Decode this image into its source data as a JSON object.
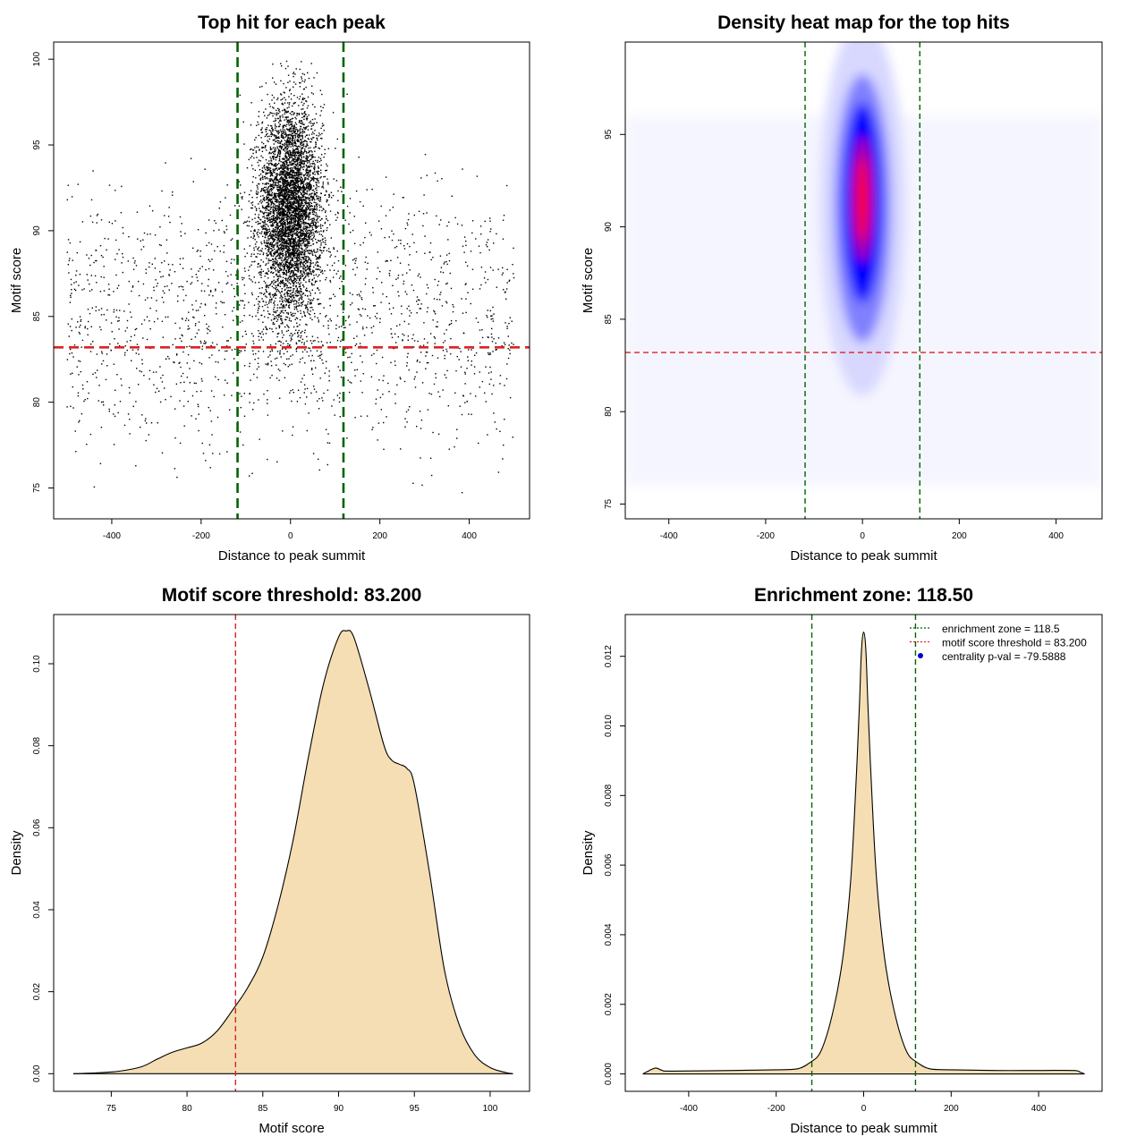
{
  "chart_data": [
    {
      "type": "scatter",
      "title": "Top hit for each peak",
      "xlabel": "Distance to peak summit",
      "ylabel": "Motif score",
      "xlim": [
        -530,
        535
      ],
      "ylim": [
        73.2,
        101
      ],
      "xticks": [
        "-400",
        "-200",
        "0",
        "200",
        "400"
      ],
      "yticks": [
        "75",
        "80",
        "85",
        "90",
        "95",
        "100"
      ],
      "point_color": "#000000",
      "enrichment_zone": [
        -118.5,
        118.5
      ],
      "zone_color": "#006400",
      "threshold": 83.2,
      "threshold_color": "#dd2222",
      "points_description": "dense vertical cluster of top hits centered near 0 (sd about 35) with motif scores mostly 85 to 99; sparse uniform background from -500 to 500 with scores 74 to 96"
    },
    {
      "type": "heatmap",
      "title": "Density heat map for the top hits",
      "xlabel": "Distance to peak summit",
      "ylabel": "Motif score",
      "xlim": [
        -490,
        495
      ],
      "ylim": [
        74.2,
        100
      ],
      "xticks": [
        "-400",
        "-200",
        "0",
        "200",
        "400"
      ],
      "yticks": [
        "75",
        "80",
        "85",
        "90",
        "95"
      ],
      "colormap": [
        "#ffffff",
        "#0000ff",
        "#ff0000"
      ],
      "density_peak": {
        "x": 0,
        "y": 91.5
      },
      "enrichment_zone": [
        -118.5,
        118.5
      ],
      "zone_color": "#006400",
      "threshold": 83.2,
      "threshold_color": "#dd2222"
    },
    {
      "type": "area",
      "title": "Motif score threshold: 83.200",
      "xlabel": "Motif score",
      "ylabel": "Density",
      "xlim": [
        71.2,
        102.6
      ],
      "ylim": [
        -0.0043,
        0.112
      ],
      "xticks": [
        "75",
        "80",
        "85",
        "90",
        "95",
        "100"
      ],
      "yticks": [
        "0.00",
        "0.02",
        "0.04",
        "0.06",
        "0.08",
        "0.10"
      ],
      "fill_color": "#f5deb3",
      "x": [
        72.5,
        74,
        75.5,
        77,
        78,
        79,
        80,
        81,
        82,
        83,
        84,
        85,
        86,
        87,
        88,
        89,
        90,
        90.5,
        91,
        92,
        93,
        93.5,
        94,
        94.5,
        95,
        96,
        97,
        98,
        99,
        100,
        101,
        101.5
      ],
      "y": [
        0.0,
        0.0002,
        0.0006,
        0.0017,
        0.0035,
        0.0052,
        0.0063,
        0.0075,
        0.0105,
        0.0155,
        0.021,
        0.0285,
        0.041,
        0.057,
        0.077,
        0.095,
        0.1065,
        0.108,
        0.1065,
        0.094,
        0.08,
        0.0765,
        0.0755,
        0.0745,
        0.0705,
        0.049,
        0.025,
        0.0115,
        0.0045,
        0.0015,
        0.0003,
        0.0
      ],
      "threshold": 83.2,
      "threshold_color": "#dd2222"
    },
    {
      "type": "area",
      "title": "Enrichment zone: 118.50",
      "xlabel": "Distance to peak summit",
      "ylabel": "Density",
      "xlim": [
        -545,
        545
      ],
      "ylim": [
        -0.0005,
        0.0132
      ],
      "xticks": [
        "-400",
        "-200",
        "0",
        "200",
        "400"
      ],
      "yticks": [
        "0.000",
        "0.002",
        "0.004",
        "0.006",
        "0.008",
        "0.010",
        "0.012"
      ],
      "fill_color": "#f5deb3",
      "x": [
        -505,
        -490,
        -475,
        -460,
        -440,
        -300,
        -200,
        -150,
        -120,
        -100,
        -80,
        -60,
        -45,
        -30,
        -20,
        -10,
        -5,
        0,
        5,
        10,
        20,
        30,
        45,
        60,
        80,
        100,
        120,
        150,
        200,
        300,
        400,
        480,
        495,
        505
      ],
      "y": [
        0.0,
        0.0001,
        0.00017,
        0.0001,
        8e-05,
        0.0001,
        0.00012,
        0.00015,
        0.00035,
        0.0006,
        0.0013,
        0.0024,
        0.0036,
        0.0055,
        0.0077,
        0.0105,
        0.0122,
        0.0127,
        0.0122,
        0.0105,
        0.0077,
        0.0055,
        0.0036,
        0.0024,
        0.0013,
        0.0006,
        0.00035,
        0.00015,
        0.00012,
        0.0001,
        0.0001,
        0.0001,
        5e-05,
        0.0
      ],
      "enrichment_zone": [
        -118.5,
        118.5
      ],
      "zone_color": "#006400",
      "legend_position": "top-right",
      "legend": [
        {
          "label": "enrichment zone = 118.5",
          "color": "#006400",
          "style": "dotted-line"
        },
        {
          "label": "motif score threshold = 83.200",
          "color": "#dd2222",
          "style": "dotted-line"
        },
        {
          "label": "centrality p-val = -79.5888",
          "color": "#0000cc",
          "style": "point"
        }
      ]
    }
  ]
}
